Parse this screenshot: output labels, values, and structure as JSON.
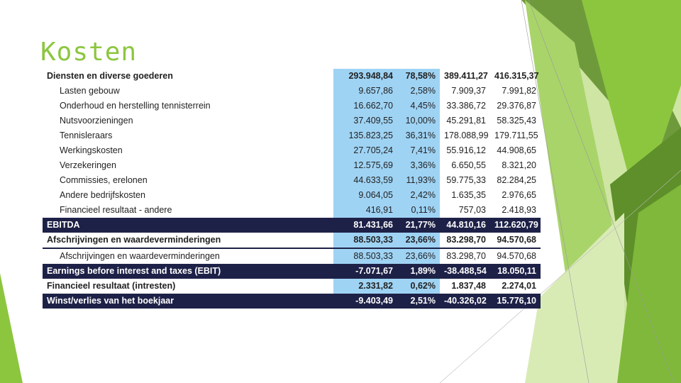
{
  "slide": {
    "title": "Kosten"
  },
  "table": {
    "rows": [
      {
        "label": "Diensten en diverse goederen",
        "v1": "293.948,84",
        "v2": "78,58%",
        "v3": "389.411,27",
        "v4": "416.315,37",
        "style": "bold",
        "name": "row-diensten-en-diverse-goederen"
      },
      {
        "label": "Lasten gebouw",
        "v1": "9.657,86",
        "v2": "2,58%",
        "v3": "7.909,37",
        "v4": "7.991,82",
        "style": "item",
        "name": "row-lasten-gebouw"
      },
      {
        "label": "Onderhoud en herstelling tennisterrein",
        "v1": "16.662,70",
        "v2": "4,45%",
        "v3": "33.386,72",
        "v4": "29.376,87",
        "style": "item",
        "name": "row-onderhoud-tennisterrein"
      },
      {
        "label": "Nutsvoorzieningen",
        "v1": "37.409,55",
        "v2": "10,00%",
        "v3": "45.291,81",
        "v4": "58.325,43",
        "style": "item",
        "name": "row-nutsvoorzieningen"
      },
      {
        "label": "Tennisleraars",
        "v1": "135.823,25",
        "v2": "36,31%",
        "v3": "178.088,99",
        "v4": "179.711,55",
        "style": "item",
        "name": "row-tennisleraars"
      },
      {
        "label": "Werkingskosten",
        "v1": "27.705,24",
        "v2": "7,41%",
        "v3": "55.916,12",
        "v4": "44.908,65",
        "style": "item",
        "name": "row-werkingskosten"
      },
      {
        "label": "Verzekeringen",
        "v1": "12.575,69",
        "v2": "3,36%",
        "v3": "6.650,55",
        "v4": "8.321,20",
        "style": "item",
        "name": "row-verzekeringen"
      },
      {
        "label": "Commissies, erelonen",
        "v1": "44.633,59",
        "v2": "11,93%",
        "v3": "59.775,33",
        "v4": "82.284,25",
        "style": "item",
        "name": "row-commissies-erelonen"
      },
      {
        "label": "Andere bedrijfskosten",
        "v1": "9.064,05",
        "v2": "2,42%",
        "v3": "1.635,35",
        "v4": "2.976,65",
        "style": "item",
        "name": "row-andere-bedrijfskosten"
      },
      {
        "label": "Financieel resultaat - andere",
        "v1": "416,91",
        "v2": "0,11%",
        "v3": "757,03",
        "v4": "2.418,93",
        "style": "item",
        "name": "row-financieel-resultaat-andere"
      },
      {
        "label": "EBITDA",
        "v1": "81.431,66",
        "v2": "21,77%",
        "v3": "44.810,16",
        "v4": "112.620,79",
        "style": "dark",
        "name": "row-ebitda"
      },
      {
        "label": "Afschrijvingen en waardeverminderingen",
        "v1": "88.503,33",
        "v2": "23,66%",
        "v3": "83.298,70",
        "v4": "94.570,68",
        "style": "bold underline",
        "name": "row-afschrijvingen-totaal"
      },
      {
        "label": "Afschrijvingen en waardeverminderingen",
        "v1": "88.503,33",
        "v2": "23,66%",
        "v3": "83.298,70",
        "v4": "94.570,68",
        "style": "item",
        "name": "row-afschrijvingen-detail"
      },
      {
        "label": "Earnings before interest and taxes (EBIT)",
        "v1": "-7.071,67",
        "v2": "1,89%",
        "v3": "-38.488,54",
        "v4": "18.050,11",
        "style": "dark",
        "name": "row-ebit"
      },
      {
        "label": "Financieel resultaat (intresten)",
        "v1": "2.331,82",
        "v2": "0,62%",
        "v3": "1.837,48",
        "v4": "2.274,01",
        "style": "bold",
        "name": "row-financieel-resultaat-intresten"
      },
      {
        "label": "Winst/verlies van het boekjaar",
        "v1": "-9.403,49",
        "v2": "2,51%",
        "v3": "-40.326,02",
        "v4": "15.776,10",
        "style": "dark",
        "name": "row-winst-verlies"
      }
    ]
  },
  "colors": {
    "title": "#8cc63f",
    "highlight_column": "#9fd3f4",
    "dark_row": "#1e2147",
    "green_dark": "#5e8f2a",
    "green_mid": "#8cc63f",
    "green_light": "#d9ebb5"
  }
}
